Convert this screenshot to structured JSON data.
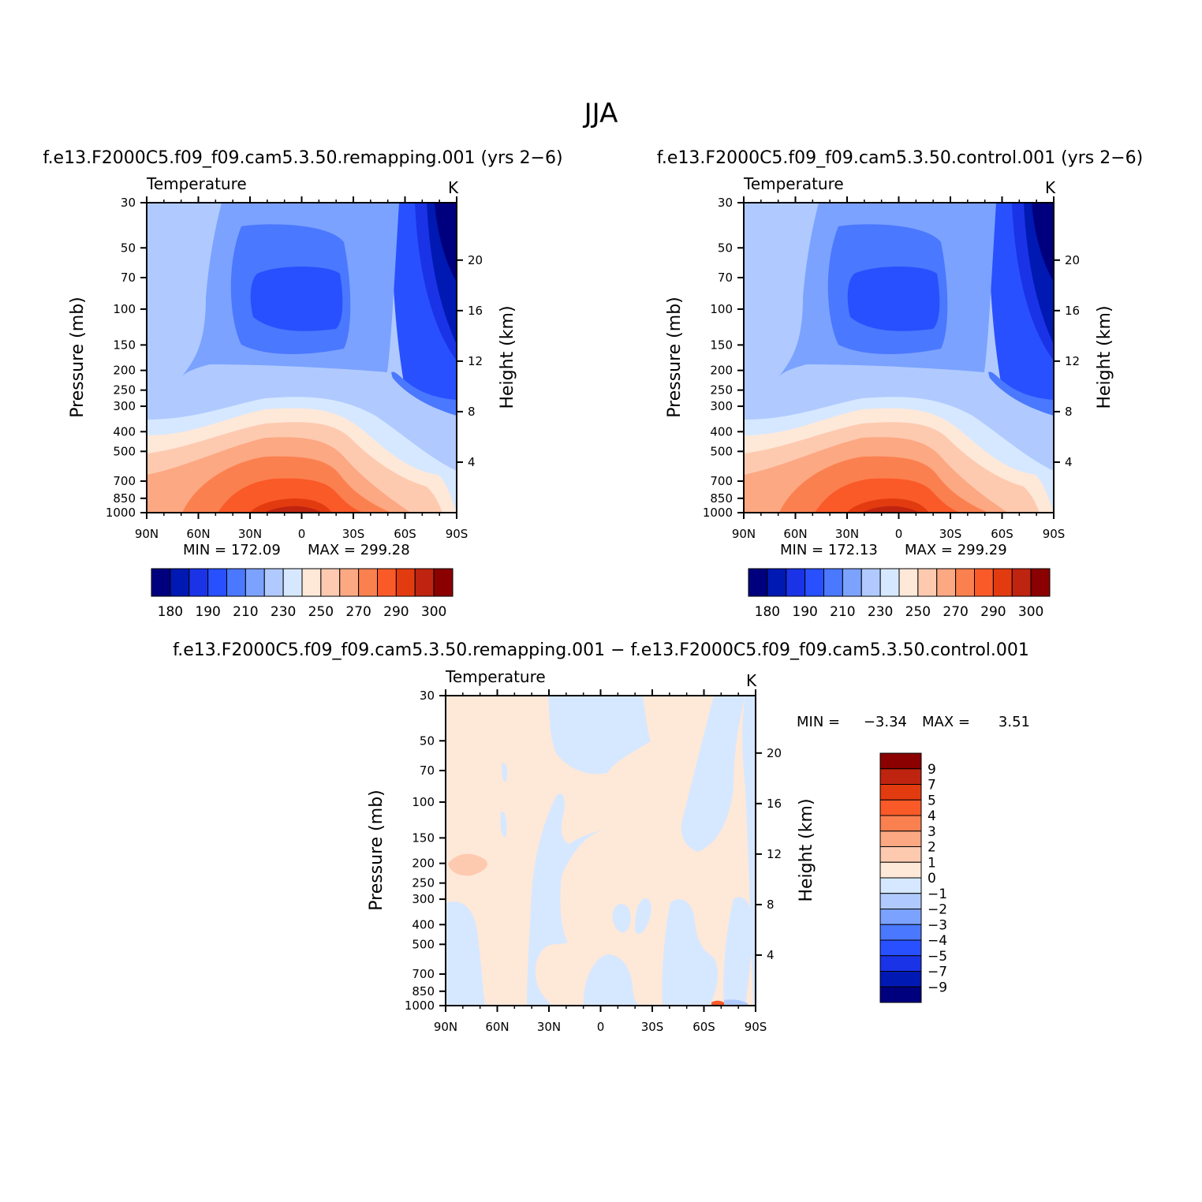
{
  "page_title": "JJA",
  "chart_data": [
    {
      "type": "contour",
      "title": "f.e13.F2000C5.f09_f09.cam5.3.50.remapping.001 (yrs 2−6)",
      "variable": "Temperature",
      "units": "K",
      "ylabel_left": "Pressure (mb)",
      "ylabel_right": "Height (km)",
      "x_ticks": [
        "90N",
        "60N",
        "30N",
        "0",
        "30S",
        "60S",
        "90S"
      ],
      "y_ticks": [
        "30",
        "50",
        "70",
        "100",
        "150",
        "200",
        "250",
        "300",
        "400",
        "500",
        "700",
        "850",
        "1000"
      ],
      "y_ticks_right": [
        "20",
        "16",
        "12",
        "8",
        "4"
      ],
      "min_label": "MIN = 172.09",
      "max_label": "MAX = 299.28",
      "min": 172.09,
      "max": 299.28,
      "colorbar_labels": [
        "180",
        "190",
        "210",
        "230",
        "250",
        "270",
        "290",
        "300"
      ]
    },
    {
      "type": "contour",
      "title": "f.e13.F2000C5.f09_f09.cam5.3.50.control.001 (yrs 2−6)",
      "variable": "Temperature",
      "units": "K",
      "ylabel_left": "Pressure (mb)",
      "ylabel_right": "Height (km)",
      "x_ticks": [
        "90N",
        "60N",
        "30N",
        "0",
        "30S",
        "60S",
        "90S"
      ],
      "y_ticks": [
        "30",
        "50",
        "70",
        "100",
        "150",
        "200",
        "250",
        "300",
        "400",
        "500",
        "700",
        "850",
        "1000"
      ],
      "y_ticks_right": [
        "20",
        "16",
        "12",
        "8",
        "4"
      ],
      "min_label": "MIN = 172.13",
      "max_label": "MAX = 299.29",
      "min": 172.13,
      "max": 299.29,
      "colorbar_labels": [
        "180",
        "190",
        "210",
        "230",
        "250",
        "270",
        "290",
        "300"
      ]
    },
    {
      "type": "contour",
      "title": "f.e13.F2000C5.f09_f09.cam5.3.50.remapping.001 − f.e13.F2000C5.f09_f09.cam5.3.50.control.001",
      "variable": "Temperature",
      "units": "K",
      "ylabel_left": "Pressure (mb)",
      "ylabel_right": "Height (km)",
      "x_ticks": [
        "90N",
        "60N",
        "30N",
        "0",
        "30S",
        "60S",
        "90S"
      ],
      "y_ticks": [
        "30",
        "50",
        "70",
        "100",
        "150",
        "200",
        "250",
        "300",
        "400",
        "500",
        "700",
        "850",
        "1000"
      ],
      "y_ticks_right": [
        "20",
        "16",
        "12",
        "8",
        "4"
      ],
      "min_label": "MIN =",
      "min_value": "−3.34",
      "max_label": "MAX =",
      "max_value": "3.51",
      "min": -3.34,
      "max": 3.51,
      "colorbar_labels": [
        "9",
        "7",
        "5",
        "4",
        "3",
        "2",
        "1",
        "0",
        "−1",
        "−2",
        "−3",
        "−4",
        "−5",
        "−7",
        "−9"
      ]
    }
  ],
  "colors": {
    "abs_levels": [
      "#00007f",
      "#0019b3",
      "#1a33e6",
      "#2850ff",
      "#4a78ff",
      "#7ba2ff",
      "#b0caff",
      "#d6e8ff",
      "#fee8d8",
      "#fdcab0",
      "#fca882",
      "#fb8050",
      "#fa5a28",
      "#e33b10",
      "#bf2410",
      "#8b0000"
    ],
    "diff_levels": [
      "#8b0000",
      "#bf2410",
      "#e33b10",
      "#fa5a28",
      "#fb8050",
      "#fca882",
      "#fdcab0",
      "#fee8d8",
      "#d6e8ff",
      "#b0caff",
      "#7ba2ff",
      "#4a78ff",
      "#2850ff",
      "#1a33e6",
      "#0019b3",
      "#00007f"
    ]
  }
}
